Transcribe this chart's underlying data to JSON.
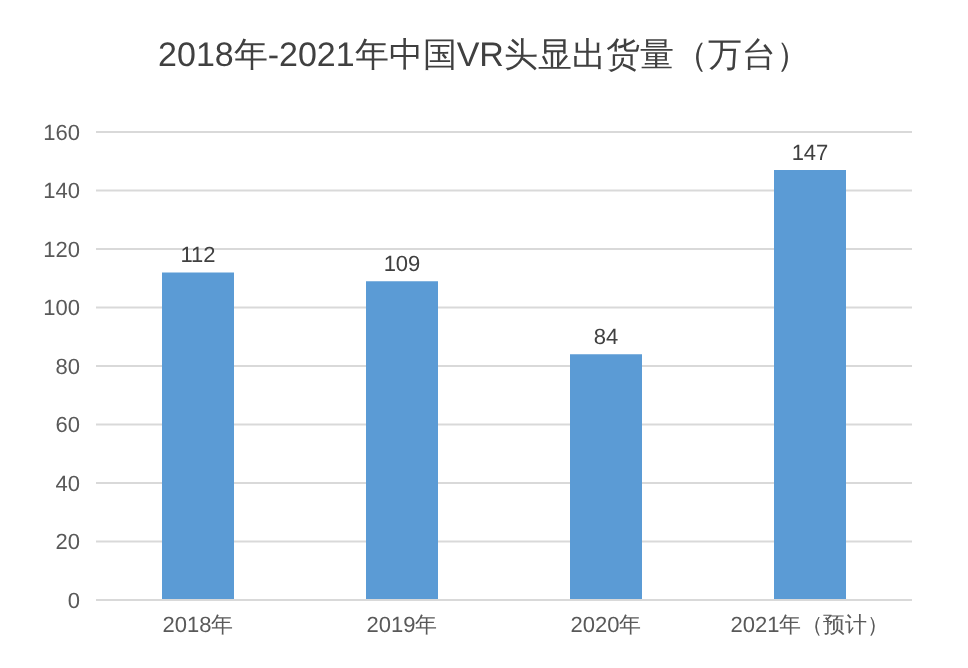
{
  "chart_data": {
    "type": "bar",
    "title": "2018年-2021年中国VR头显出货量（万台）",
    "categories": [
      "2018年",
      "2019年",
      "2020年",
      "2021年（预计）"
    ],
    "values": [
      112,
      109,
      84,
      147
    ],
    "color": "#5b9bd5",
    "ylim": [
      0,
      160
    ],
    "yticks": [
      0,
      20,
      40,
      60,
      80,
      100,
      120,
      140,
      160
    ],
    "grid": "y",
    "data_labels": true
  }
}
